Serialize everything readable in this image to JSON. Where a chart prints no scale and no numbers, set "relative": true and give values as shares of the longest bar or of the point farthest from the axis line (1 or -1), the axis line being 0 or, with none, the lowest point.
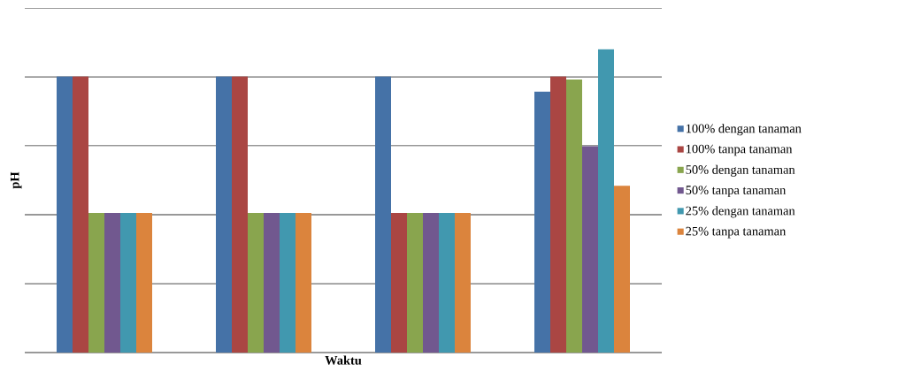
{
  "chart_data": {
    "type": "bar",
    "relative": true,
    "xlabel": "Waktu",
    "ylabel": "pH",
    "categories": [
      null,
      null,
      null,
      null
    ],
    "series": [
      {
        "name": "100% dengan tanaman",
        "color": "#4572a7",
        "values": [
          0.91,
          0.91,
          0.91,
          0.86
        ]
      },
      {
        "name": "100% tanpa tanaman",
        "color": "#aa4643",
        "values": [
          0.91,
          0.91,
          0.46,
          0.91
        ]
      },
      {
        "name": "50% dengan tanaman",
        "color": "#89a54e",
        "values": [
          0.46,
          0.46,
          0.46,
          0.9
        ]
      },
      {
        "name": "50% tanpa tanaman",
        "color": "#71588f",
        "values": [
          0.46,
          0.46,
          0.46,
          0.68
        ]
      },
      {
        "name": "25% dengan tanaman",
        "color": "#4198af",
        "values": [
          0.46,
          0.46,
          0.46,
          1
        ]
      },
      {
        "name": "25% tanpa tanaman",
        "color": "#db843d",
        "values": [
          0.46,
          0.46,
          0.46,
          0.55
        ]
      }
    ],
    "grid": "y",
    "legend": "right"
  }
}
